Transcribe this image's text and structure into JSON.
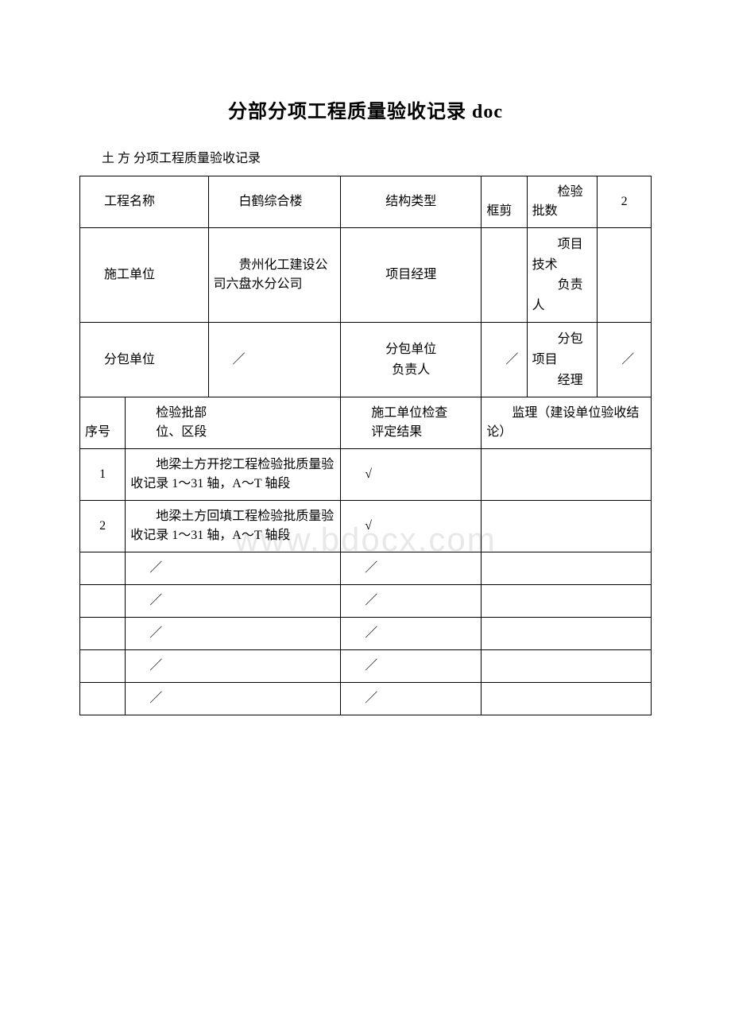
{
  "page_title": "分部分项工程质量验收记录 doc",
  "subtitle": "土 方  分项工程质量验收记录",
  "watermark": "www.bdocx.com",
  "header": {
    "project_name_label": "工程名称",
    "project_name_value": "　　白鹤综合楼",
    "structure_type_label": "结构类型",
    "structure_type_value": "　　框剪",
    "inspection_batch_count_label": "　　检验批数",
    "inspection_batch_count_value": "2",
    "construction_unit_label": "施工单位",
    "construction_unit_value": "　　贵州化工建设公司六盘水分公司",
    "project_manager_label": "项目经理",
    "project_manager_value": "",
    "project_tech_leader_label1": "　　项目技术",
    "project_tech_leader_label2": "　　负责人",
    "project_tech_leader_value": "",
    "subcontractor_label": "分包单位",
    "subcontractor_value": "／",
    "subcontractor_leader_label": "分包单位\n负责人",
    "subcontractor_leader_value": "／",
    "subcontract_pm_label1": "　　分包项目",
    "subcontract_pm_label2": "　　经理",
    "subcontract_pm_value": "／"
  },
  "columns": {
    "seq": "　　序号",
    "batch_location": "　　检验批部\n　　位、区段",
    "construction_result": "　　施工单位检查\n　　评定结果",
    "supervision_conclusion": "　　监理（建设单位验收结论）"
  },
  "rows": [
    {
      "seq": "1",
      "location": "　　地梁土方开挖工程检验批质量验收记录 1～31 轴，A～T 轴段",
      "result": "√",
      "conclusion": ""
    },
    {
      "seq": "2",
      "location": "　　地梁土方回填工程检验批质量验收记录 1～31 轴，A～T 轴段",
      "result": "√",
      "conclusion": ""
    },
    {
      "seq": "",
      "location": "／",
      "result": "／",
      "conclusion": ""
    },
    {
      "seq": "",
      "location": "／",
      "result": "／",
      "conclusion": ""
    },
    {
      "seq": "",
      "location": "／",
      "result": "／",
      "conclusion": ""
    },
    {
      "seq": "",
      "location": "／",
      "result": "／",
      "conclusion": ""
    },
    {
      "seq": "",
      "location": "／",
      "result": "／",
      "conclusion": ""
    }
  ],
  "styling": {
    "background_color": "#ffffff",
    "text_color": "#000000",
    "border_color": "#000000",
    "watermark_color": "#e8e8e8",
    "title_fontsize": 24,
    "body_fontsize": 16,
    "font_family": "SimSun"
  }
}
